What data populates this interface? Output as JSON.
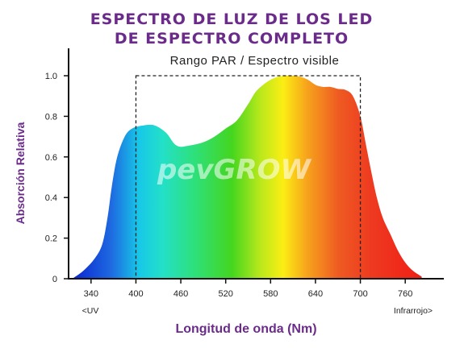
{
  "title_line1": "ESPECTRO DE LUZ DE LOS LED",
  "title_line2": "DE ESPECTRO COMPLETO",
  "watermark": "pevGROW",
  "chart_data": {
    "type": "area",
    "title": "ESPECTRO DE LUZ DE LOS LED DE ESPECTRO COMPLETO",
    "xlabel": "Longitud de onda (Nm)",
    "ylabel": "Absorción Relativa",
    "xlim": [
      310,
      790
    ],
    "ylim": [
      0,
      1.0
    ],
    "x_ticks": [
      "340",
      "400",
      "460",
      "520",
      "580",
      "640",
      "700",
      "760"
    ],
    "y_ticks": [
      "0",
      "0.2",
      "0.4",
      "0.6",
      "0.8",
      "1.0"
    ],
    "x_edge_left": "<UV",
    "x_edge_right": "Infrarrojo>",
    "annotation": {
      "label": "Rango PAR / Espectro visible",
      "x_start": 400,
      "x_end": 700,
      "y": 1.0
    },
    "series": [
      {
        "x": [
          315,
          330,
          345,
          355,
          362,
          368,
          375,
          385,
          395,
          410,
          425,
          440,
          450,
          455,
          460,
          465,
          475,
          490,
          505,
          520,
          535,
          550,
          560,
          570,
          580,
          590,
          600,
          610,
          620,
          630,
          640,
          650,
          660,
          670,
          680,
          690,
          700,
          708,
          715,
          722,
          730,
          740,
          750,
          760,
          770,
          782
        ],
        "y": [
          0.0,
          0.04,
          0.1,
          0.17,
          0.3,
          0.46,
          0.6,
          0.7,
          0.74,
          0.755,
          0.755,
          0.72,
          0.67,
          0.655,
          0.65,
          0.652,
          0.658,
          0.672,
          0.7,
          0.74,
          0.78,
          0.86,
          0.92,
          0.955,
          0.98,
          0.995,
          1.0,
          1.0,
          0.995,
          0.98,
          0.955,
          0.945,
          0.945,
          0.935,
          0.93,
          0.9,
          0.8,
          0.65,
          0.52,
          0.4,
          0.3,
          0.22,
          0.14,
          0.08,
          0.04,
          0.01
        ]
      }
    ]
  }
}
